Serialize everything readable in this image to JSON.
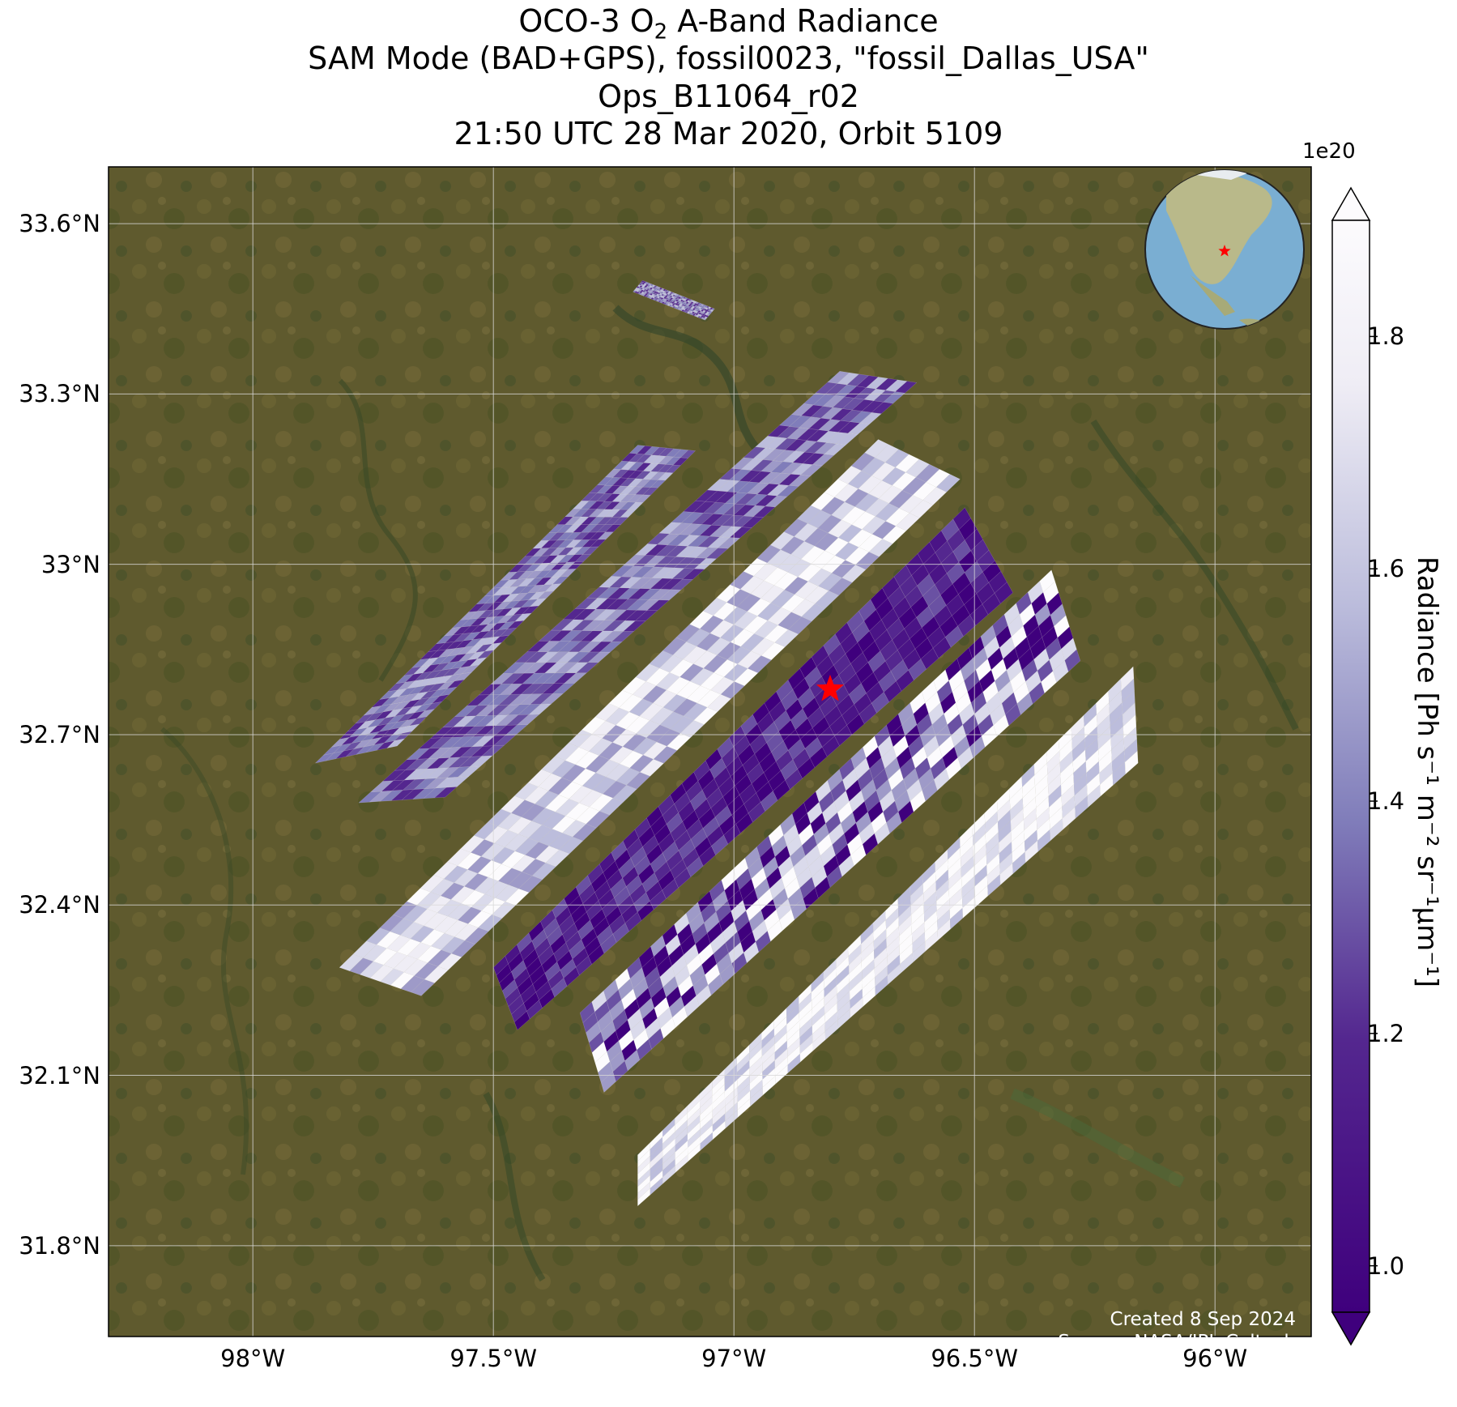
{
  "title": {
    "line1_prefix": "OCO-3 O",
    "line1_sub": "2",
    "line1_suffix": " A-Band Radiance",
    "line2": "SAM Mode (BAD+GPS), fossil0023, \"fossil_Dallas_USA\"",
    "line3": "Ops_B11064_r02",
    "line4": "21:50 UTC 28 Mar 2020, Orbit 5109"
  },
  "axes": {
    "lat_ticks": [
      "33.6°N",
      "33.3°N",
      "33°N",
      "32.7°N",
      "32.4°N",
      "32.1°N",
      "31.8°N"
    ],
    "lat_values": [
      33.6,
      33.3,
      33.0,
      32.7,
      32.4,
      32.1,
      31.8
    ],
    "lon_ticks": [
      "98°W",
      "97.5°W",
      "97°W",
      "96.5°W",
      "96°W"
    ],
    "lon_values": [
      -98.0,
      -97.5,
      -97.0,
      -96.5,
      -96.0
    ],
    "lat_range": [
      31.64,
      33.7
    ],
    "lon_range": [
      -98.3,
      -95.8
    ],
    "grid": true
  },
  "colorbar": {
    "label_text": "Radiance [Ph s⁻¹ m⁻² sr⁻¹μm⁻¹]",
    "exponent": "1e20",
    "ticks": [
      "1.0",
      "1.2",
      "1.4",
      "1.6",
      "1.8"
    ],
    "tick_values": [
      1.0,
      1.2,
      1.4,
      1.6,
      1.8
    ],
    "range": [
      0.96,
      1.9
    ],
    "colormap": "Purples_r",
    "extend": "both",
    "low_color": "#3f007d",
    "high_color": "#fcfbfd"
  },
  "target": {
    "lon": -96.8,
    "lat": 32.78,
    "marker": "red-star"
  },
  "inset_globe": {
    "marker": "red-star"
  },
  "credits": {
    "created": "Created 8 Sep 2024",
    "source": "Source: NASA/JPL-Caltech"
  },
  "colors": {
    "grid": "#d9d9d9",
    "target_star": "#ff0000",
    "globe_ocean": "#7aaed2",
    "basemap": "#5f5a2e"
  },
  "map_data": {
    "type": "swath-map",
    "swaths": [
      {
        "tone": "medium",
        "corners": [
          [
            -97.87,
            32.65
          ],
          [
            -97.2,
            33.21
          ],
          [
            -97.08,
            33.2
          ],
          [
            -97.7,
            32.68
          ]
        ]
      },
      {
        "tone": "medium",
        "corners": [
          [
            -97.78,
            32.58
          ],
          [
            -96.78,
            33.34
          ],
          [
            -96.62,
            33.32
          ],
          [
            -97.6,
            32.59
          ]
        ]
      },
      {
        "tone": "light",
        "corners": [
          [
            -97.82,
            32.29
          ],
          [
            -96.7,
            33.22
          ],
          [
            -96.53,
            33.15
          ],
          [
            -97.65,
            32.24
          ]
        ]
      },
      {
        "tone": "dark",
        "corners": [
          [
            -97.5,
            32.29
          ],
          [
            -96.52,
            33.1
          ],
          [
            -96.42,
            32.95
          ],
          [
            -97.45,
            32.18
          ]
        ]
      },
      {
        "tone": "mixed",
        "corners": [
          [
            -97.32,
            32.21
          ],
          [
            -96.34,
            32.99
          ],
          [
            -96.28,
            32.83
          ],
          [
            -97.27,
            32.07
          ]
        ]
      },
      {
        "tone": "very-light",
        "corners": [
          [
            -97.2,
            31.96
          ],
          [
            -96.17,
            32.82
          ],
          [
            -96.16,
            32.65
          ],
          [
            -97.2,
            31.87
          ]
        ]
      },
      {
        "tone": "medium",
        "corners": [
          [
            -97.21,
            33.48
          ],
          [
            -97.06,
            33.43
          ],
          [
            -97.04,
            33.45
          ],
          [
            -97.19,
            33.5
          ]
        ]
      }
    ]
  }
}
